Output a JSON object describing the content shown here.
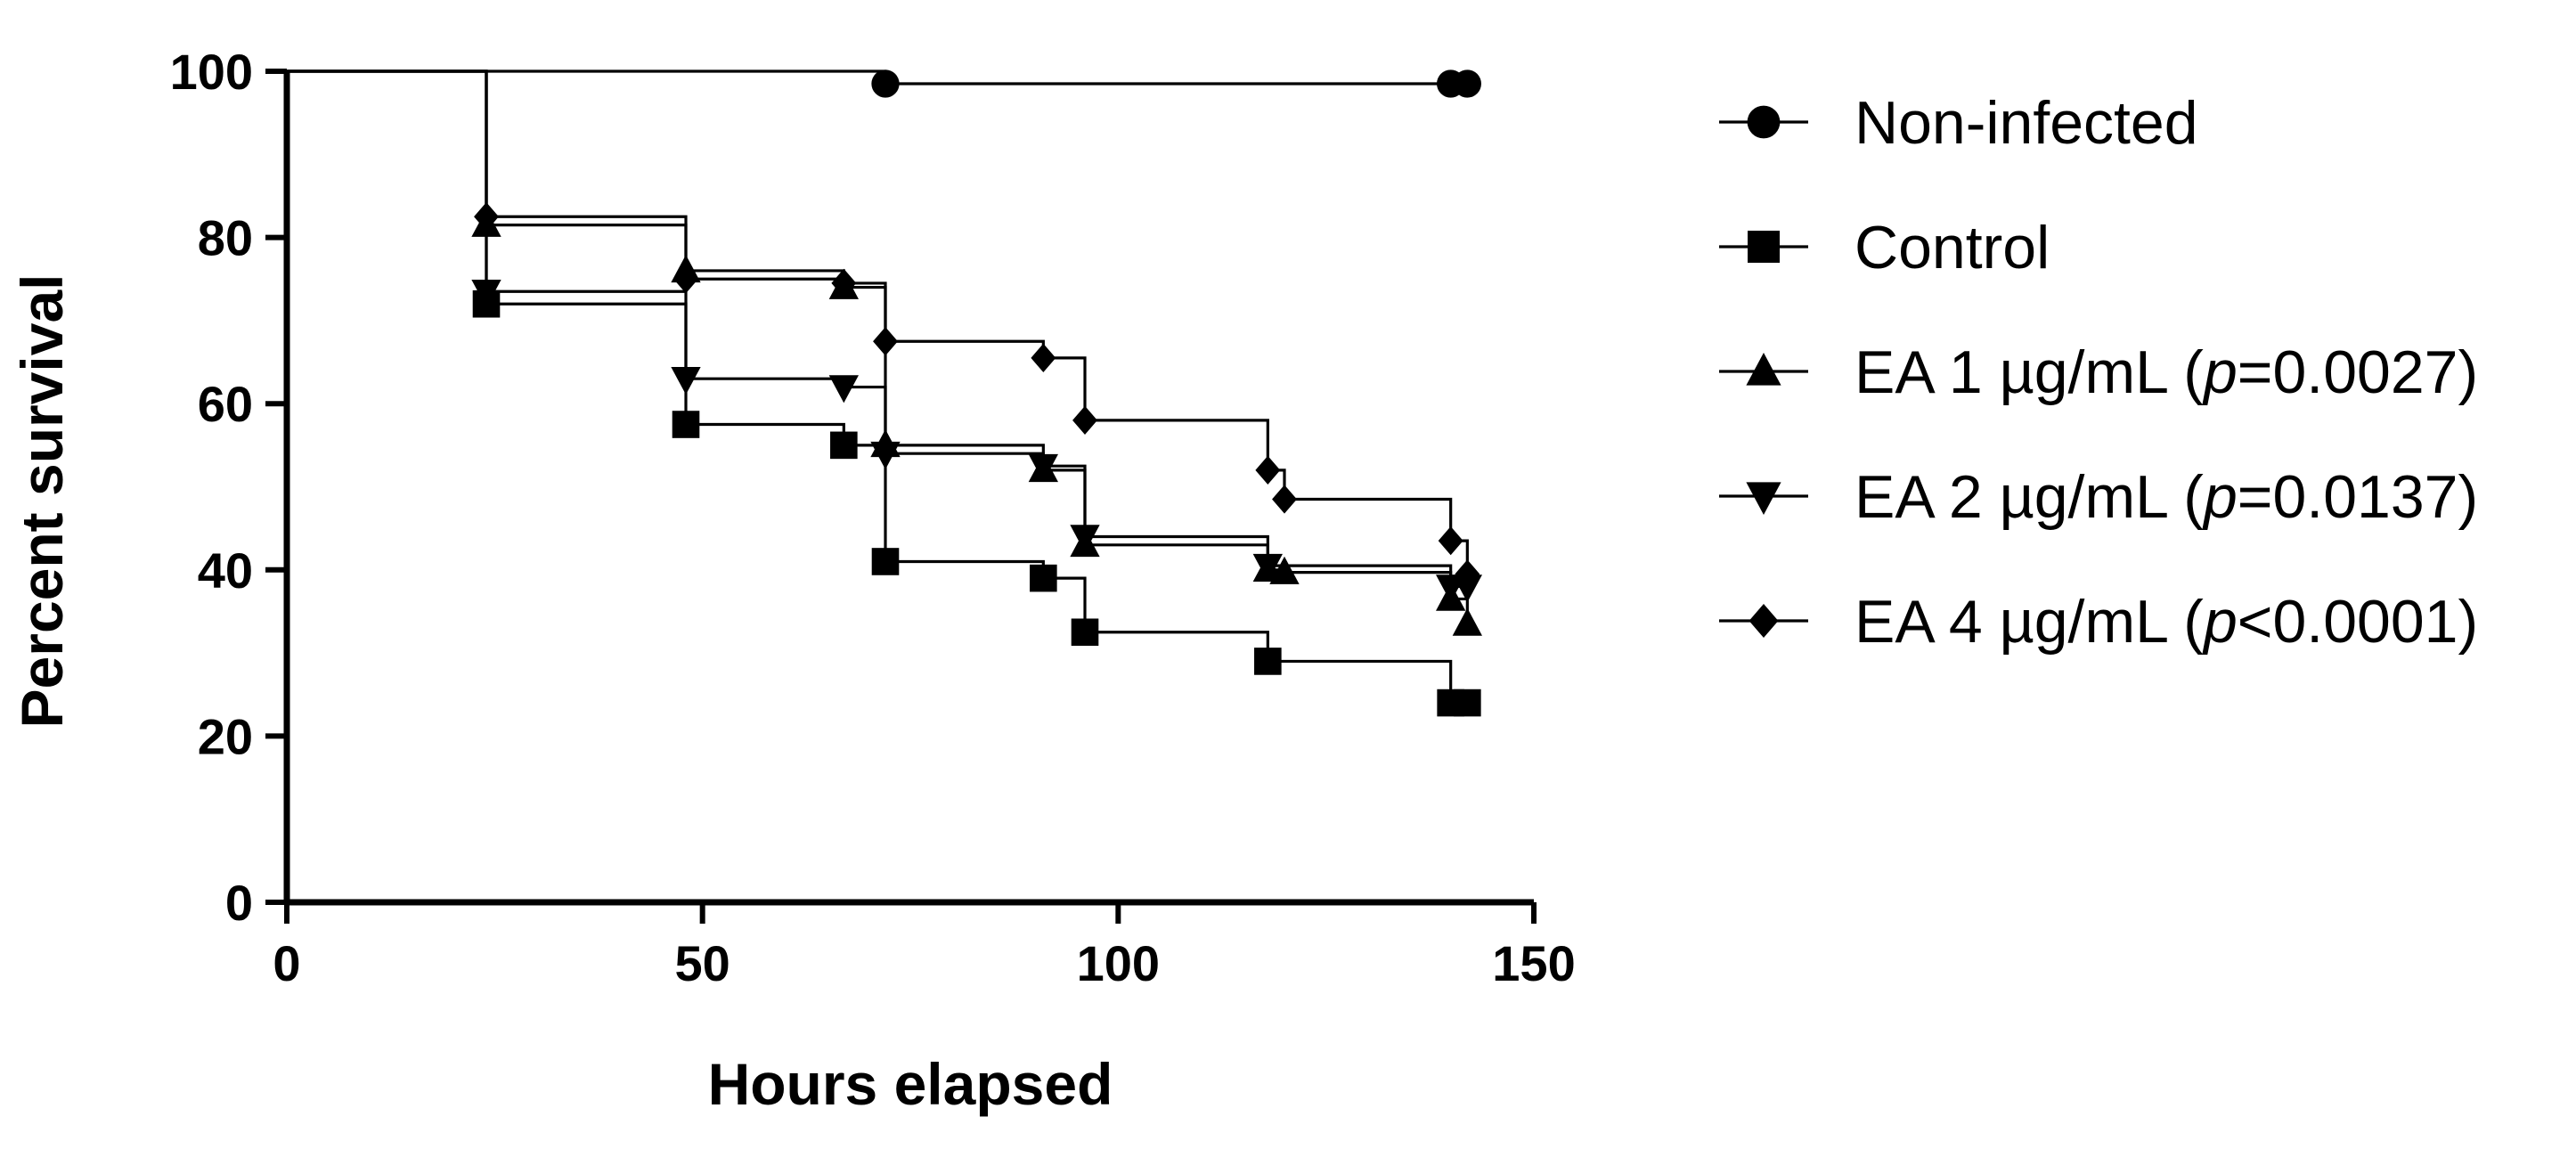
{
  "chart_data": {
    "type": "line",
    "subtype": "kaplan-meier-step",
    "title": "",
    "xlabel": "Hours elapsed",
    "ylabel": "Percent survival",
    "xlim": [
      0,
      150
    ],
    "ylim": [
      0,
      100
    ],
    "xticks": [
      "0",
      "50",
      "100",
      "150"
    ],
    "yticks": [
      "0",
      "20",
      "40",
      "60",
      "80",
      "100"
    ],
    "grid": false,
    "legend_position": "right",
    "series": [
      {
        "name": "Non-infected",
        "marker": "circle",
        "x": [
          0,
          72,
          140,
          142
        ],
        "y": [
          100,
          98.5,
          98.5,
          98.5
        ]
      },
      {
        "name": "Control",
        "marker": "square",
        "x": [
          0,
          24,
          48,
          67,
          72,
          91,
          96,
          118,
          140,
          142
        ],
        "y": [
          100,
          72,
          57.5,
          55,
          41,
          39,
          32.5,
          29,
          24,
          24
        ]
      },
      {
        "name": "EA 1 µg/mL (p=0.0027)",
        "name_parts": [
          "EA 1 µg/mL (",
          "p",
          "=0.0027)"
        ],
        "marker": "triangle-up",
        "x": [
          0,
          24,
          48,
          67,
          72,
          91,
          96,
          118,
          120,
          140,
          142
        ],
        "y": [
          100,
          81.5,
          76,
          74,
          55,
          52,
          43,
          40,
          39.7,
          36.5,
          33.5
        ]
      },
      {
        "name": "EA 2 µg/mL (p=0.0137)",
        "name_parts": [
          "EA 2 µg/mL (",
          "p",
          "=0.0137)"
        ],
        "marker": "triangle-down",
        "x": [
          0,
          24,
          48,
          67,
          72,
          91,
          96,
          118,
          140,
          142
        ],
        "y": [
          100,
          73.5,
          63,
          62,
          54,
          52.5,
          44,
          40.5,
          38,
          38
        ]
      },
      {
        "name": "EA 4 µg/mL (p<0.0001)",
        "name_parts": [
          "EA 4 µg/mL (",
          "p",
          "<0.0001)"
        ],
        "marker": "diamond",
        "x": [
          0,
          24,
          48,
          67,
          72,
          91,
          96,
          118,
          120,
          140,
          142
        ],
        "y": [
          100,
          82.5,
          75,
          74.5,
          67.5,
          65.5,
          58,
          52,
          48.5,
          43.5,
          39.5
        ]
      }
    ]
  }
}
